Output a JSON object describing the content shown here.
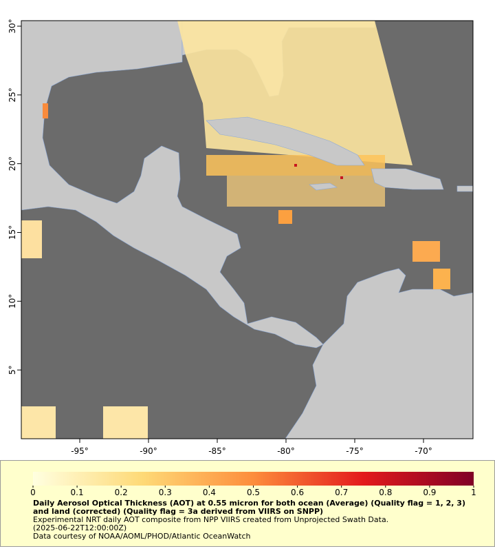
{
  "map": {
    "xlim": [
      -99.25,
      -66.4
    ],
    "ylim": [
      0,
      30.4
    ],
    "xticks": [
      {
        "value": -95,
        "label": "-95°"
      },
      {
        "value": -90,
        "label": "-90°"
      },
      {
        "value": -85,
        "label": "-85°"
      },
      {
        "value": -80,
        "label": "-80°"
      },
      {
        "value": -75,
        "label": "-75°"
      },
      {
        "value": -70,
        "label": "-70°"
      }
    ],
    "yticks": [
      {
        "value": 5,
        "label": "5°"
      },
      {
        "value": 10,
        "label": "10°"
      },
      {
        "value": 15,
        "label": "15°"
      },
      {
        "value": 20,
        "label": "20°"
      },
      {
        "value": 25,
        "label": "25°"
      },
      {
        "value": 30,
        "label": "30°"
      }
    ]
  },
  "colorbar": {
    "lim": [
      0,
      1
    ],
    "ticks": [
      0,
      0.1,
      0.2,
      0.3,
      0.4,
      0.5,
      0.6,
      0.7,
      0.8,
      0.9,
      1
    ]
  },
  "caption": {
    "title": "Daily Aerosol Optical Thickness (AOT) at 0.55 micron for both ocean (Average) (Quality flag = 1, 2, 3) and land (corrected) (Quality flag = 3a derived from VIIRS on SNPP)",
    "lines": [
      "Experimental NRT daily AOT composite from NPP VIIRS created from Unprojected Swath Data.",
      "(2025-06-22T12:00:00Z)",
      "Data courtesy of NOAA/AOML/PHOD/Atlantic OceanWatch"
    ]
  }
}
